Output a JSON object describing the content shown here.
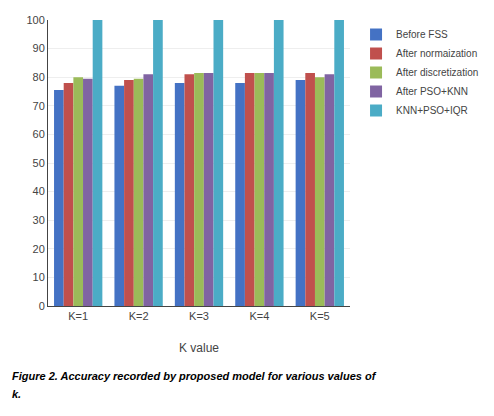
{
  "chart_data": {
    "type": "bar",
    "categories": [
      "K=1",
      "K=2",
      "K=3",
      "K=4",
      "K=5"
    ],
    "series": [
      {
        "name": "Before FSS",
        "color": "#4472C4",
        "values": [
          75.5,
          77.0,
          78.0,
          78.0,
          79.0
        ]
      },
      {
        "name": "After normaization",
        "color": "#C0504D",
        "values": [
          78.0,
          79.0,
          81.0,
          81.5,
          81.5
        ]
      },
      {
        "name": "After discretization",
        "color": "#9BBB59",
        "values": [
          80.0,
          79.5,
          81.5,
          81.5,
          80.0
        ]
      },
      {
        "name": "After PSO+KNN",
        "color": "#8064A2",
        "values": [
          79.5,
          81.0,
          81.5,
          81.5,
          81.0
        ]
      },
      {
        "name": "KNN+PSO+IQR",
        "color": "#4BACC6",
        "values": [
          100,
          100,
          100,
          100,
          100
        ]
      }
    ],
    "xlabel": "K value",
    "ylim": [
      0,
      100
    ],
    "yticks": [
      0,
      10,
      20,
      30,
      40,
      50,
      60,
      70,
      80,
      90,
      100
    ],
    "grid": true,
    "legend": "right",
    "annotations": [
      "Figure 2. Accuracy recorded by proposed model for various values of",
      "k."
    ]
  }
}
